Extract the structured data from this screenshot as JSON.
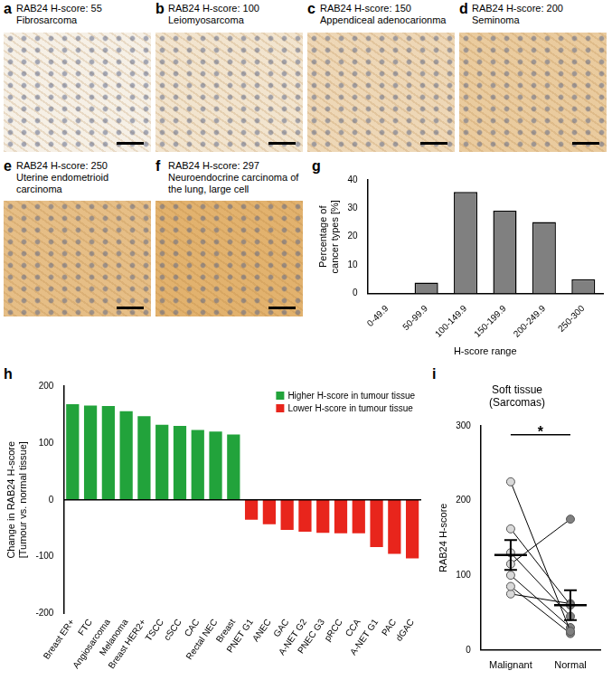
{
  "image_panels": [
    {
      "panel": "a",
      "title": "RAB24 H-score: 55",
      "subtitle": "Fibrosarcoma"
    },
    {
      "panel": "b",
      "title": "RAB24 H-score: 100",
      "subtitle": "Leiomyosarcoma"
    },
    {
      "panel": "c",
      "title": "RAB24 H-score: 150",
      "subtitle": "Appendiceal adenocarionma"
    },
    {
      "panel": "d",
      "title": "RAB24 H-score: 200",
      "subtitle": "Seminoma"
    },
    {
      "panel": "e",
      "title": "RAB24 H-score: 250",
      "subtitle": "Uterine endometrioid carcinoma"
    },
    {
      "panel": "f",
      "title": "RAB24 H-score: 297",
      "subtitle": "Neuroendocrine carcinoma of the lung, large cell"
    }
  ],
  "chart_data": [
    {
      "panel": "g",
      "type": "bar",
      "categories": [
        "0-49.9",
        "50-99.9",
        "100-149.9",
        "150-199.9",
        "200-249.9",
        "250-300"
      ],
      "values": [
        0,
        3.8,
        35.8,
        29.2,
        25.2,
        5
      ],
      "color": "#808080",
      "xlabel": "H-score range",
      "ylabel": "Percentage of cancer types [%]",
      "ylim": [
        0,
        40
      ],
      "yticks": [
        0,
        10,
        20,
        30,
        40
      ],
      "grid": false
    },
    {
      "panel": "h",
      "type": "bar",
      "categories": [
        "Breast ER+",
        "FTC",
        "Angiosarcoma",
        "Melanoma",
        "Breast HER2+",
        "TSCC",
        "cSCC",
        "CAC",
        "Rectal NEC",
        "Breast",
        "PNET G1",
        "ANEC",
        "GAC",
        "A-NET G2",
        "PNEC G3",
        "pRCC",
        "CCA",
        "A-NET G1",
        "PAC",
        "dGAC"
      ],
      "series": [
        {
          "name": "Higher H-score in tumour tissue",
          "color": "#22a33b",
          "values": [
            168,
            166,
            165,
            156,
            147,
            132,
            130,
            123,
            120,
            115,
            null,
            null,
            null,
            null,
            null,
            null,
            null,
            null,
            null,
            null
          ]
        },
        {
          "name": "Lower H-score in tumour tissue",
          "color": "#e8251c",
          "values": [
            null,
            null,
            null,
            null,
            null,
            null,
            null,
            null,
            null,
            null,
            -35,
            -43,
            -53,
            -56,
            -58,
            -59,
            -59,
            -83,
            -95,
            -103
          ]
        }
      ],
      "ylabel": "Change in RAB24 H-score [Tumour vs. normal tissue]",
      "ylim": [
        -200,
        200
      ],
      "yticks": [
        -200,
        -100,
        0,
        100,
        200
      ],
      "legend": "upper right",
      "grid": false
    },
    {
      "panel": "i",
      "type": "line",
      "title": "Soft tissue (Sarcomas)",
      "categories": [
        "Malignant",
        "Normal"
      ],
      "series": [
        {
          "values": [
            225,
            25
          ]
        },
        {
          "values": [
            162,
            60
          ]
        },
        {
          "values": [
            130,
            45
          ]
        },
        {
          "values": [
            115,
            175
          ]
        },
        {
          "values": [
            100,
            30
          ]
        },
        {
          "values": [
            85,
            22
          ]
        },
        {
          "values": [
            75,
            62
          ]
        }
      ],
      "colors": [
        "#d9d9d9",
        "#808080"
      ],
      "marker": "circle",
      "mean": [
        127,
        60
      ],
      "sem": [
        20,
        20
      ],
      "annotations": [
        {
          "text": "*"
        }
      ],
      "ylabel": "RAB24 H-score",
      "ylim": [
        0,
        300
      ],
      "yticks": [
        0,
        100,
        200,
        300
      ],
      "grid": false
    }
  ]
}
